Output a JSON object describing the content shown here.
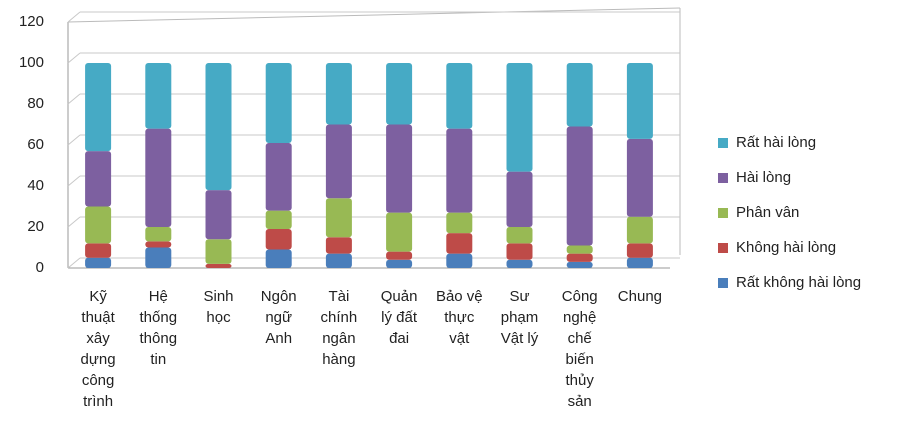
{
  "chart_data": {
    "type": "stacked_bar",
    "categories": [
      "Kỹ\nthuật\nxây\ndựng\ncông\ntrình",
      "Hệ\nthống\nthông\ntin",
      "Sinh\nhọc",
      "Ngôn\nngữ\nAnh",
      "Tài\nchính\nngân\nhàng",
      "Quản\nlý đất\nđai",
      "Bảo vệ\nthực\nvật",
      "Sư\nphạm\nVật lý",
      "Công\nnghệ\nchế\nbiến\nthủy\nsản",
      "Chung"
    ],
    "series": [
      {
        "name": "Rất không hài lòng",
        "color": "#4a7ebb",
        "values": [
          5,
          10,
          0,
          9,
          7,
          4,
          7,
          4,
          3,
          5
        ]
      },
      {
        "name": "Không hài lòng",
        "color": "#be4b48",
        "values": [
          7,
          3,
          2,
          10,
          8,
          4,
          10,
          8,
          4,
          7
        ]
      },
      {
        "name": "Phân vân",
        "color": "#98b954",
        "values": [
          18,
          7,
          12,
          9,
          19,
          19,
          10,
          8,
          4,
          13
        ]
      },
      {
        "name": "Hài lòng",
        "color": "#7d60a0",
        "values": [
          27,
          48,
          24,
          33,
          36,
          43,
          41,
          27,
          58,
          38
        ]
      },
      {
        "name": "Rất hài lòng",
        "color": "#46aac5",
        "values": [
          43,
          32,
          62,
          39,
          30,
          30,
          32,
          53,
          31,
          37
        ]
      }
    ],
    "ylim": [
      0,
      120
    ],
    "yticks": [
      0,
      20,
      40,
      60,
      80,
      100,
      120
    ],
    "grid": true,
    "legend": "right"
  }
}
